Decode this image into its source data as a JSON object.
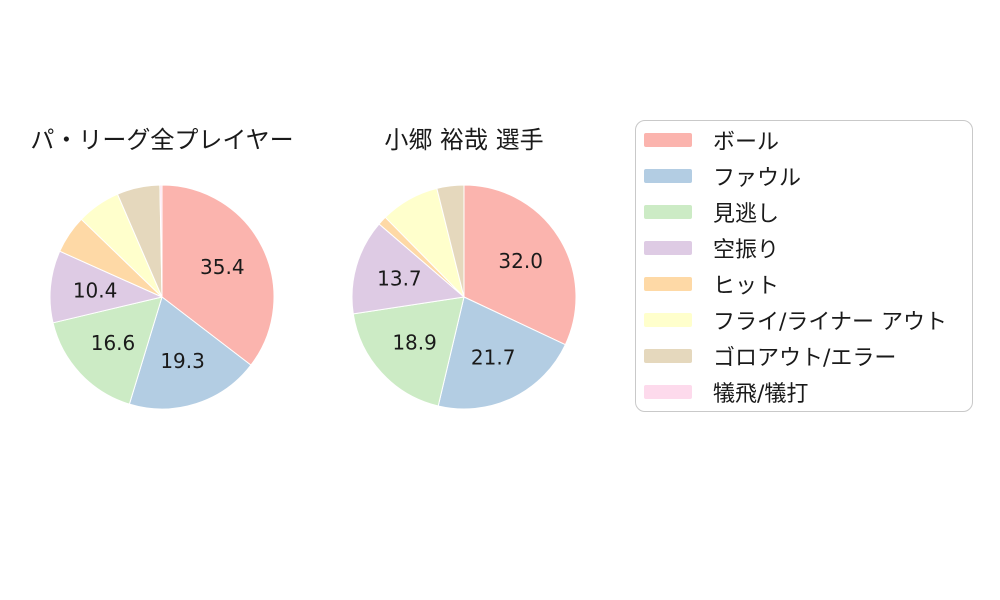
{
  "page": {
    "background_color": "#ffffff",
    "text_color": "#1a1a1a"
  },
  "legend": {
    "border_color": "#c9c9c9",
    "position": "right",
    "items": [
      {
        "label": "ボール",
        "color": "#fbb4ae"
      },
      {
        "label": "ファウル",
        "color": "#b3cde3"
      },
      {
        "label": "見逃し",
        "color": "#ccebc5"
      },
      {
        "label": "空振り",
        "color": "#decbe4"
      },
      {
        "label": "ヒット",
        "color": "#fed9a6"
      },
      {
        "label": "フライ/ライナー アウト",
        "color": "#ffffcc"
      },
      {
        "label": "ゴロアウト/エラー",
        "color": "#e5d8bd"
      },
      {
        "label": "犠飛/犠打",
        "color": "#fddaec"
      }
    ]
  },
  "chart_data": [
    {
      "type": "pie",
      "title": "パ・リーグ全プレイヤー",
      "categories": [
        "ボール",
        "ファウル",
        "見逃し",
        "空振り",
        "ヒット",
        "フライ/ライナー アウト",
        "ゴロアウト/エラー",
        "犠飛/犠打"
      ],
      "values": [
        35.4,
        19.3,
        16.6,
        10.4,
        5.5,
        6.3,
        6.2,
        0.3
      ],
      "colors": [
        "#fbb4ae",
        "#b3cde3",
        "#ccebc5",
        "#decbe4",
        "#fed9a6",
        "#ffffcc",
        "#e5d8bd",
        "#fddaec"
      ],
      "shown_labels": [
        "35.4",
        "19.3",
        "16.6",
        "10.4"
      ],
      "start_angle": "12-oclock",
      "direction": "clockwise",
      "label_threshold": 10,
      "label_decimals": 1,
      "slice_border_color": "#ffffff"
    },
    {
      "type": "pie",
      "title": "小郷 裕哉 選手",
      "categories": [
        "ボール",
        "ファウル",
        "見逃し",
        "空振り",
        "ヒット",
        "フライ/ライナー アウト",
        "ゴロアウト/エラー",
        "犠飛/犠打"
      ],
      "values": [
        32.0,
        21.7,
        18.9,
        13.7,
        1.3,
        8.5,
        3.9,
        0.0
      ],
      "colors": [
        "#fbb4ae",
        "#b3cde3",
        "#ccebc5",
        "#decbe4",
        "#fed9a6",
        "#ffffcc",
        "#e5d8bd",
        "#fddaec"
      ],
      "shown_labels": [
        "32.0",
        "21.7",
        "18.9",
        "13.7"
      ],
      "start_angle": "12-oclock",
      "direction": "clockwise",
      "label_threshold": 10,
      "label_decimals": 1,
      "slice_border_color": "#ffffff"
    }
  ]
}
